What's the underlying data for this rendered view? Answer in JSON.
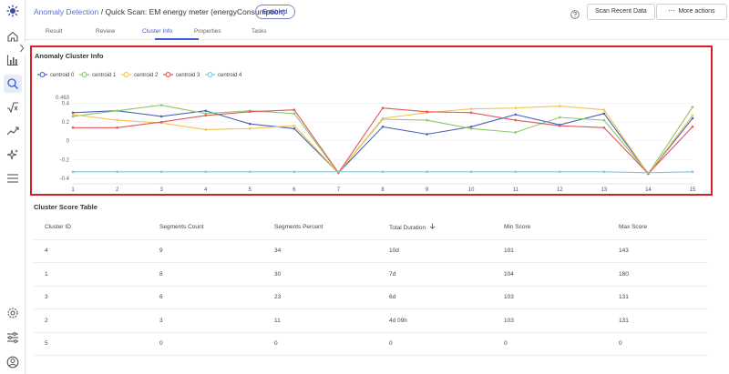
{
  "header": {
    "breadcrumb_link": "Anomaly Detection",
    "breadcrumb_sep": " / ",
    "breadcrumb_rest": "Quick Scan: EM energy meter (energyConsumption)",
    "status_badge": "Enabled",
    "scan_button": "Scan Recent Data",
    "more_actions": "More actions",
    "more_actions_icon": "ellipsis-icon"
  },
  "tabs": [
    {
      "label": "Result"
    },
    {
      "label": "Review"
    },
    {
      "label": "Cluster Info",
      "active": true
    },
    {
      "label": "Properties"
    },
    {
      "label": "Tasks"
    }
  ],
  "sidebar": {
    "icons": [
      "logo-icon",
      "home-icon",
      "bar-chart-icon",
      "search-icon",
      "sqrt-icon",
      "trend-icon",
      "sparkle-icon",
      "menu-icon",
      "gear-icon",
      "sliders-icon",
      "user-icon"
    ],
    "active_icon": "search-icon"
  },
  "colors": {
    "accent": "#3a5ad6",
    "highlight_border": "#d8201e",
    "centroid0": "#4a63b8",
    "centroid1": "#8cc86d",
    "centroid2": "#f2c450",
    "centroid3": "#e0565a",
    "centroid4": "#7cc7e0"
  },
  "chart_data": {
    "type": "line",
    "title": "Anomaly Cluster Info",
    "x": [
      1,
      2,
      3,
      4,
      5,
      6,
      7,
      8,
      9,
      10,
      11,
      12,
      13,
      14,
      15
    ],
    "y_ticks": [
      "-0.4",
      "-0.2",
      "0",
      "0.2",
      "0.4"
    ],
    "y_max_label": "0.463",
    "ylim": [
      -0.4,
      0.463
    ],
    "legend_position": "top-left",
    "grid": true,
    "series": [
      {
        "name": "centroid 0",
        "color": "#4a63b8",
        "values": [
          0.3,
          0.32,
          0.26,
          0.32,
          0.18,
          0.13,
          -0.34,
          0.15,
          0.07,
          0.15,
          0.28,
          0.17,
          0.29,
          -0.35,
          0.24
        ]
      },
      {
        "name": "centroid 1",
        "color": "#8cc86d",
        "values": [
          0.26,
          0.32,
          0.38,
          0.29,
          0.32,
          0.29,
          -0.34,
          0.23,
          0.22,
          0.13,
          0.09,
          0.25,
          0.22,
          -0.35,
          0.36
        ]
      },
      {
        "name": "centroid 2",
        "color": "#f2c450",
        "values": [
          0.28,
          0.22,
          0.19,
          0.12,
          0.13,
          0.16,
          -0.34,
          0.24,
          0.3,
          0.34,
          0.35,
          0.37,
          0.33,
          -0.35,
          0.27
        ]
      },
      {
        "name": "centroid 3",
        "color": "#e0565a",
        "values": [
          0.14,
          0.14,
          0.2,
          0.27,
          0.31,
          0.33,
          -0.34,
          0.35,
          0.31,
          0.3,
          0.22,
          0.16,
          0.14,
          -0.35,
          0.15
        ]
      },
      {
        "name": "centroid 4",
        "color": "#7cc7e0",
        "values": [
          -0.33,
          -0.33,
          -0.33,
          -0.33,
          -0.33,
          -0.33,
          -0.33,
          -0.33,
          -0.33,
          -0.33,
          -0.33,
          -0.33,
          -0.33,
          -0.34,
          -0.33
        ]
      }
    ]
  },
  "table": {
    "title": "Cluster Score Table",
    "columns": [
      "Cluster ID",
      "Segments Count",
      "Segments Percent",
      "Total Duration",
      "Min Score",
      "Max Score"
    ],
    "sorted_column_icon": "arrow-down-icon",
    "rows": [
      [
        "4",
        "9",
        "34",
        "10d",
        "101",
        "143"
      ],
      [
        "1",
        "8",
        "30",
        "7d",
        "104",
        "180"
      ],
      [
        "3",
        "6",
        "23",
        "6d",
        "103",
        "131"
      ],
      [
        "2",
        "3",
        "11",
        "4d 09h",
        "103",
        "131"
      ],
      [
        "5",
        "0",
        "0",
        "0",
        "0",
        "0"
      ]
    ]
  }
}
